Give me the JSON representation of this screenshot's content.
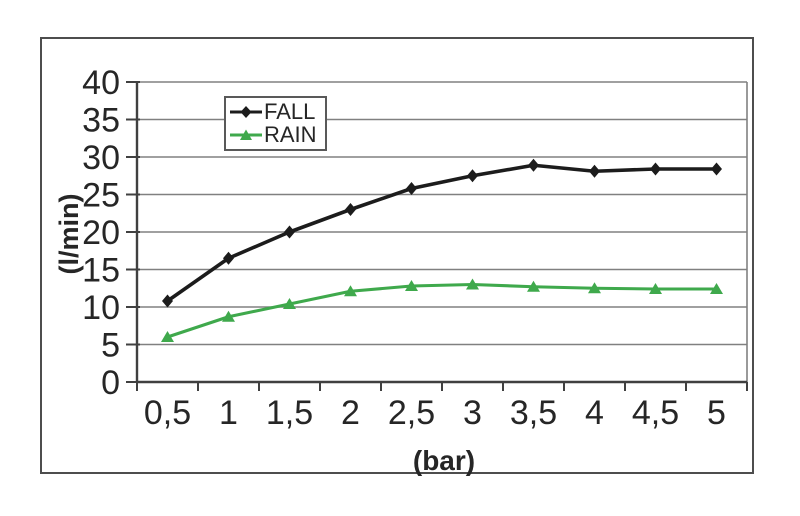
{
  "chart_data": {
    "type": "line",
    "title": "",
    "xlabel": "(bar)",
    "ylabel": "(l/min)",
    "categories": [
      "0,5",
      "1",
      "1,5",
      "2",
      "2,5",
      "3",
      "3,5",
      "4",
      "4,5",
      "5"
    ],
    "x_values": [
      0.5,
      1,
      1.5,
      2,
      2.5,
      3,
      3.5,
      4,
      4.5,
      5
    ],
    "y_ticks": [
      0,
      5,
      10,
      15,
      20,
      25,
      30,
      35,
      40
    ],
    "y_tick_labels": [
      "0",
      "5",
      "10",
      "15",
      "20",
      "25",
      "30",
      "35",
      "40"
    ],
    "ylim": [
      0,
      40
    ],
    "grid": "horizontal",
    "legend_position": "inside-top-left",
    "series": [
      {
        "name": "FALL",
        "color": "#1c1c1c",
        "marker": "diamond",
        "values": [
          10.8,
          16.5,
          20.0,
          23.0,
          25.8,
          27.5,
          28.9,
          28.1,
          28.4,
          28.4
        ]
      },
      {
        "name": "RAIN",
        "color": "#3fa94c",
        "marker": "triangle",
        "values": [
          6.0,
          8.7,
          10.4,
          12.1,
          12.8,
          13.0,
          12.7,
          12.5,
          12.4,
          12.4
        ]
      }
    ]
  },
  "colors": {
    "background": "#ffffff",
    "frame": "#4d4d4d",
    "gridline": "#808080",
    "axis": "#404040",
    "text": "#262626"
  }
}
